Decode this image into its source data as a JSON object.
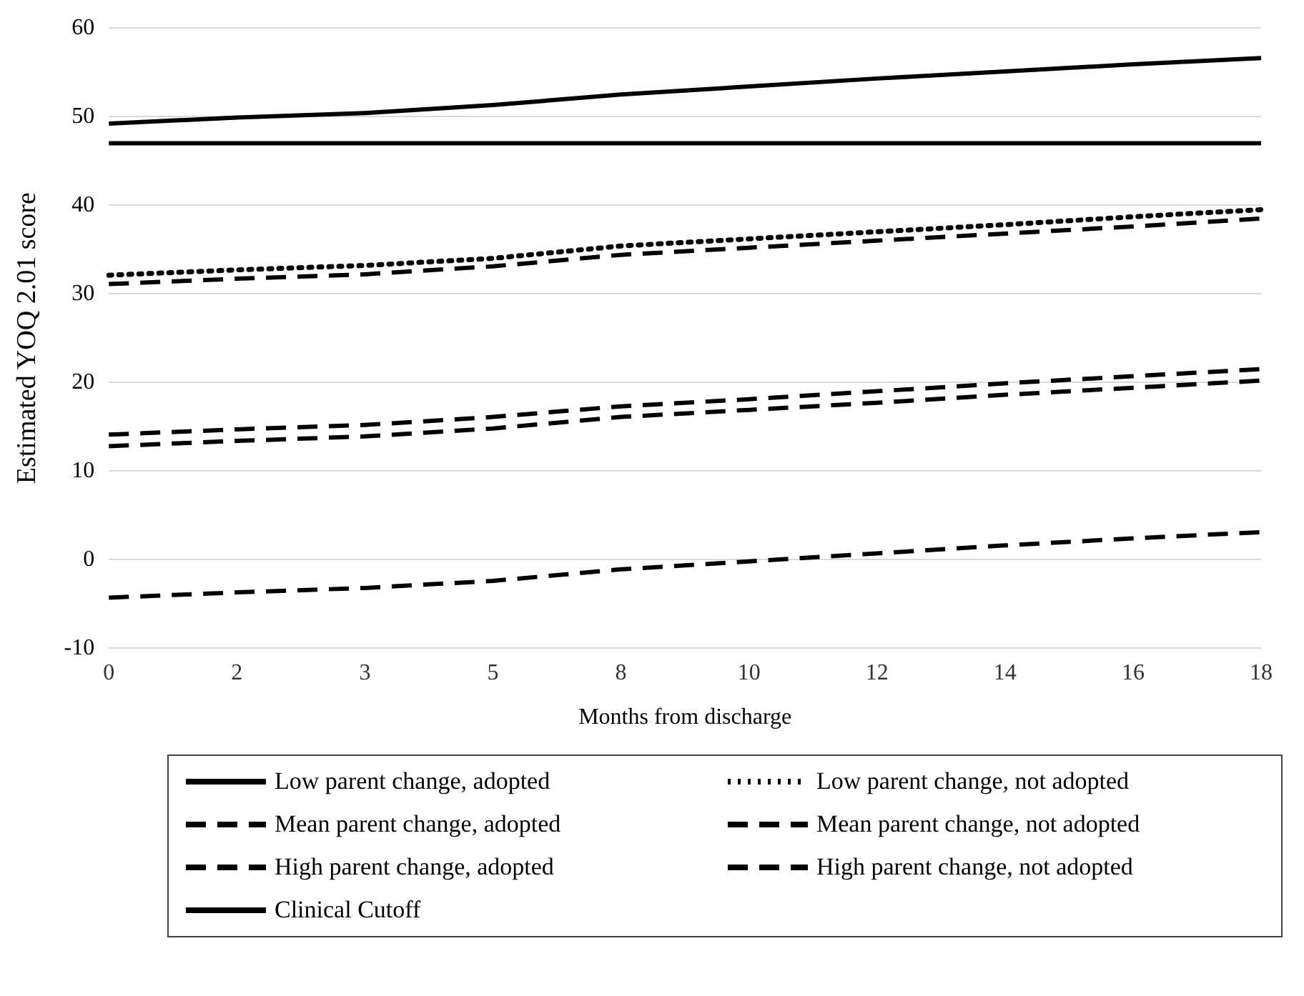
{
  "chart_data": {
    "type": "line",
    "xlabel": "Months from discharge",
    "ylabel": "Estimated YOQ 2.01 score",
    "categories": [
      "0",
      "2",
      "3",
      "5",
      "8",
      "10",
      "12",
      "14",
      "16",
      "18"
    ],
    "ylim": [
      -10,
      60
    ],
    "yticks": [
      -10,
      0,
      10,
      20,
      30,
      40,
      50,
      60
    ],
    "grid": "y",
    "legend": "bottom",
    "marker": "none",
    "series": [
      {
        "name": "Low parent change, adopted",
        "color": "#000000",
        "line_style": "solid",
        "values": [
          49.2,
          49.9,
          50.4,
          51.3,
          52.5,
          53.4,
          54.3,
          55.1,
          55.9,
          56.6
        ]
      },
      {
        "name": "Low parent change, not adopted",
        "color": "#000000",
        "line_style": "dotted",
        "values": [
          32.1,
          32.7,
          33.2,
          34.0,
          35.4,
          36.2,
          37.0,
          37.8,
          38.7,
          39.5
        ]
      },
      {
        "name": "Mean parent change, adopted",
        "color": "#000000",
        "line_style": "dashed",
        "values": [
          31.1,
          31.7,
          32.2,
          33.1,
          34.4,
          35.2,
          36.0,
          36.8,
          37.6,
          38.5
        ]
      },
      {
        "name": "Mean parent change, not adopted",
        "color": "#000000",
        "line_style": "dashed",
        "values": [
          14.1,
          14.7,
          15.2,
          16.1,
          17.3,
          18.1,
          19.0,
          19.9,
          20.7,
          21.5
        ]
      },
      {
        "name": "High parent change, adopted",
        "color": "#000000",
        "line_style": "dashed",
        "values": [
          12.8,
          13.4,
          13.9,
          14.8,
          16.1,
          16.9,
          17.7,
          18.6,
          19.4,
          20.2
        ]
      },
      {
        "name": "High parent change, not adopted",
        "color": "#000000",
        "line_style": "dashed",
        "values": [
          -4.3,
          -3.7,
          -3.2,
          -2.4,
          -1.1,
          -0.2,
          0.7,
          1.6,
          2.4,
          3.1
        ]
      },
      {
        "name": "Clinical Cutoff",
        "color": "#000000",
        "line_style": "solid",
        "values": [
          47,
          47,
          47,
          47,
          47,
          47,
          47,
          47,
          47,
          47
        ]
      }
    ]
  }
}
